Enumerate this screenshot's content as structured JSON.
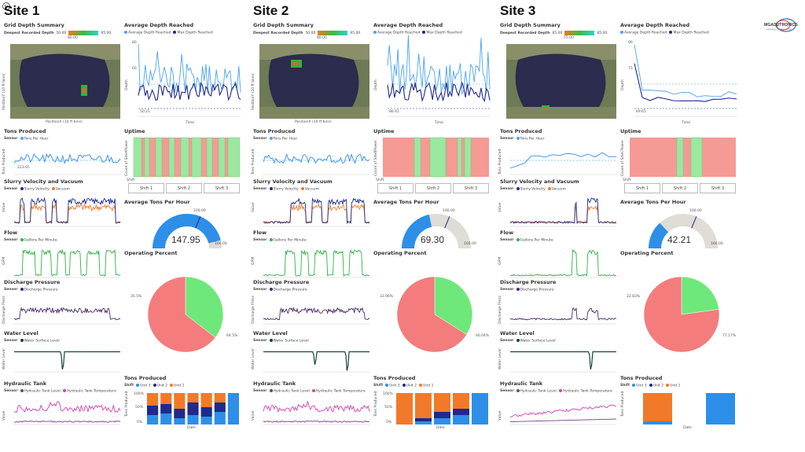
{
  "sites": [
    {
      "title": "Site 1",
      "depth_value": "147.95",
      "grid": {
        "title": "Grid Depth Summary",
        "legend_label": "Deepest Recorded Depth",
        "min": "50.00",
        "mid": "80.00",
        "max": "95.00",
        "xlabel": "PositionX (10 ft bins)",
        "ylabel": "PositionY (10 ft bins)"
      },
      "avg_depth": {
        "title": "Average Depth Reached",
        "legend": [
          "Average Depth Reached",
          "Max Depth Reached"
        ],
        "xlabel": "Time",
        "ylabel": "Depth",
        "ref_label": "50.21",
        "ytick_top": "80",
        "ytick_mid": "60"
      },
      "tons": {
        "title": "Tons Produced",
        "sensor_label": "Sensor",
        "legend": [
          "Tons Per Hour"
        ],
        "ylabel": "Tons Produced",
        "ref_label": "223.65"
      },
      "uptime": {
        "title": "Uptime",
        "ylabel": "Count of SiteAPower",
        "shift_label": "Shift",
        "shifts": [
          "Shift 1",
          "Shift 2",
          "Shift 3"
        ]
      },
      "slurry": {
        "title": "Slurry Velocity and Vacuum",
        "sensor_label": "Sensor",
        "legend": [
          "Slurry Velocity",
          "Vacuum"
        ],
        "ylabel": "Value"
      },
      "avg_tph": {
        "title": "Average Tons Per Hour",
        "value": "147.95",
        "min": "0.00",
        "max": "160.00",
        "target": "100.00"
      },
      "flow": {
        "title": "Flow",
        "sensor_label": "Sensor",
        "legend": [
          "Gallons Per Minute"
        ],
        "ylabel": "GPM"
      },
      "op_pct": {
        "title": "Operating Percent",
        "label_a": "35.5%",
        "label_b": "64.5%"
      },
      "discharge": {
        "title": "Discharge Pressure",
        "sensor_label": "Sensor",
        "legend": [
          "Discharge Pressure"
        ],
        "ylabel": "Discharge Press"
      },
      "water": {
        "title": "Water Level",
        "sensor_label": "Sensor",
        "legend": [
          "Water Surface Level"
        ],
        "ylabel": "Water Level"
      },
      "hydraulic": {
        "title": "Hydraulic Tank",
        "sensor_label": "Sensor",
        "legend": [
          "Hydraulic Tank Level",
          "Hydraulic Tank Temperature"
        ],
        "ylabel": "Value"
      },
      "tons_stack": {
        "title": "Tons Produced",
        "shift_label": "Shift",
        "legend": [
          "Unit 3",
          "Unit 2",
          "Unit 1"
        ],
        "ylabel": "Tons Produced",
        "xlabel": "Date",
        "ytick_top": "100%",
        "ytick_mid": "50%",
        "ytick_bot": "0%"
      }
    },
    {
      "title": "Site 2",
      "grid": {
        "title": "Grid Depth Summary",
        "legend_label": "Deepest Recorded Depth",
        "min": "50.00",
        "mid": "80.00",
        "max": "95.00",
        "xlabel": "PositionX (10 ft bins)",
        "ylabel": "PositionY (10 ft bins)"
      },
      "avg_depth": {
        "title": "Average Depth Reached",
        "legend": [
          "Average Depth Reached",
          "Max Depth Reached"
        ],
        "xlabel": "Time",
        "ylabel": "Depth",
        "ref_label": "86.41",
        "ytick_top": "",
        "ytick_mid": ""
      },
      "tons": {
        "title": "Tons Produced",
        "sensor_label": "Sensor",
        "legend": [
          "Tons Per Hour"
        ],
        "ylabel": "Tons Produced",
        "ref_label": ""
      },
      "uptime": {
        "title": "Uptime",
        "ylabel": "Count of SiteBPower",
        "shift_label": "Shift",
        "shifts": [
          "Shift 1",
          "Shift 2",
          "Shift 3"
        ]
      },
      "slurry": {
        "title": "Slurry Velocity and Vacuum",
        "sensor_label": "Sensor",
        "legend": [
          "Slurry Velocity",
          "Vacuum"
        ],
        "ylabel": "Value"
      },
      "avg_tph": {
        "title": "Average Tons Per Hour",
        "value": "69.30",
        "min": "0.00",
        "max": "160.00",
        "target": "100.00"
      },
      "flow": {
        "title": "Flow",
        "sensor_label": "Sensor",
        "legend": [
          "Gallons Per Minute"
        ],
        "ylabel": "GPM"
      },
      "op_pct": {
        "title": "Operating Percent",
        "label_a": "33.96%",
        "label_b": "66.04%"
      },
      "discharge": {
        "title": "Discharge Pressure",
        "sensor_label": "Sensor",
        "legend": [
          "Discharge Pressure"
        ],
        "ylabel": "Discharge Press"
      },
      "water": {
        "title": "Water Level",
        "sensor_label": "Sensor",
        "legend": [
          "Water Surface Level"
        ],
        "ylabel": "Water Level"
      },
      "hydraulic": {
        "title": "Hydraulic Tank",
        "sensor_label": "Sensor",
        "legend": [
          "Hydraulic Tank Level",
          "Hydraulic Tank Temperature"
        ],
        "ylabel": "Value"
      },
      "tons_stack": {
        "title": "Tons Produced",
        "shift_label": "Shift",
        "legend": [
          "Unit 3",
          "Unit 2",
          "Unit 1"
        ],
        "ylabel": "Tons Produced",
        "xlabel": "Date",
        "ytick_top": "100%",
        "ytick_mid": "50%",
        "ytick_bot": "0%"
      }
    },
    {
      "title": "Site 3",
      "grid": {
        "title": "Grid Depth Summary",
        "legend_label": "Deepest Recorded Depth",
        "min": "65.00",
        "mid": "75.00",
        "max": "85.00",
        "xlabel": "",
        "ylabel": ""
      },
      "avg_depth": {
        "title": "Average Depth Reached",
        "legend": [
          "Average Depth Reached",
          "Max Depth Reached"
        ],
        "xlabel": "Time",
        "ylabel": "Depth",
        "ref_label": "69.65",
        "ytick_top": "90",
        "ytick_mid": "75"
      },
      "tons": {
        "title": "Tons Produced",
        "sensor_label": "Sensor",
        "legend": [
          "Tons Per Hour"
        ],
        "ylabel": "Tons Produced",
        "ref_label": ""
      },
      "uptime": {
        "title": "Uptime",
        "ylabel": "Count of SiteCPower",
        "shift_label": "Shift",
        "shifts": [
          "Shift 1",
          "Shift 2",
          "Shift 3"
        ]
      },
      "slurry": {
        "title": "Slurry Velocity and Vacuum",
        "sensor_label": "Sensor",
        "legend": [
          "Slurry Velocity",
          "Vacuum"
        ],
        "ylabel": "Value"
      },
      "avg_tph": {
        "title": "Average Tons Per Hour",
        "value": "42.21",
        "min": "0.00",
        "max": "160.00",
        "target": "100.00"
      },
      "flow": {
        "title": "Flow",
        "sensor_label": "Sensor",
        "legend": [
          "Gallons Per Minute"
        ],
        "ylabel": "GPM"
      },
      "op_pct": {
        "title": "Operating Percent",
        "label_a": "22.83%",
        "label_b": "77.17%"
      },
      "discharge": {
        "title": "Discharge Pressure",
        "sensor_label": "Sensor",
        "legend": [
          "Discharge Pressure"
        ],
        "ylabel": "Discharge Press"
      },
      "water": {
        "title": "Water Level",
        "sensor_label": "Sensor",
        "legend": [
          "Water Surface Level"
        ],
        "ylabel": "Water Level"
      },
      "hydraulic": {
        "title": "Hydraulic Tank",
        "sensor_label": "Sensor",
        "legend": [
          "Hydraulic Tank Level",
          "Hydraulic Tank Temperature"
        ],
        "ylabel": "Value"
      },
      "tons_stack": {
        "title": "Tons Produced",
        "shift_label": "Shift",
        "legend": [
          "Unit 3",
          "Unit 2",
          "Unit 1"
        ],
        "ylabel": "Tons Produced",
        "xlabel": "Date",
        "ytick_top": "",
        "ytick_mid": "",
        "ytick_bot": ""
      }
    }
  ],
  "logo": {
    "name": "MGASUTRONICS",
    "sub": "a company of Bronze Group"
  },
  "colors": {
    "light_blue": "#4aa3f0",
    "dark_blue": "#1f2a8c",
    "orange": "#f07a2a",
    "green": "#2fb34a",
    "purple": "#4a2a6e",
    "teal": "#16433a",
    "magenta": "#d63fb8",
    "uptime_red": "#f59a95",
    "uptime_green": "#9be8a0",
    "pie_green": "#6ee87a",
    "pie_red": "#f47c7c",
    "gauge_blue": "#2d8fe8",
    "gauge_grey": "#e0dcd6"
  },
  "icons": {
    "top_left": "back-arrow-icon"
  },
  "chart_data": [
    {
      "type": "pie",
      "title": "Operating Percent",
      "series": [
        {
          "name": "",
          "values": [
            35.5,
            64.5
          ]
        }
      ]
    },
    {
      "type": "pie",
      "title": "Operating Percent",
      "series": [
        {
          "name": "",
          "values": [
            33.96,
            66.04
          ]
        }
      ]
    },
    {
      "type": "pie",
      "title": "Operating Percent",
      "series": [
        {
          "name": "",
          "values": [
            22.83,
            77.17
          ]
        }
      ]
    }
  ]
}
